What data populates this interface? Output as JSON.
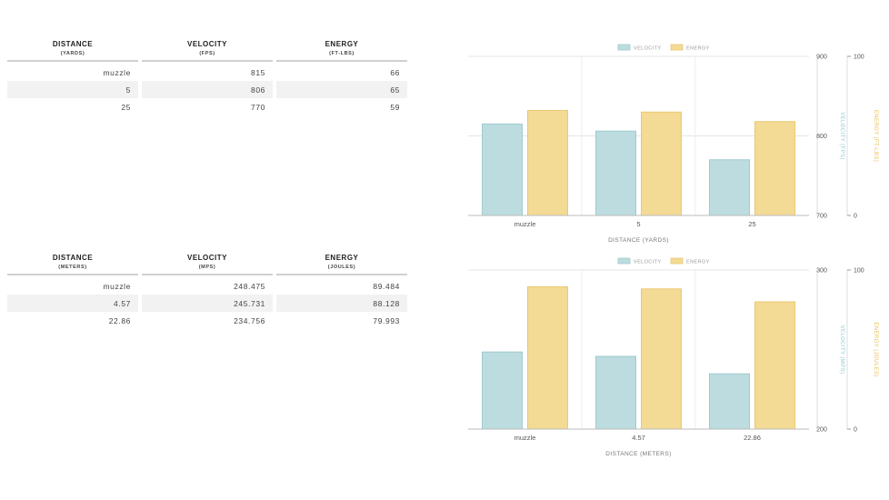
{
  "tables": [
    {
      "headers": [
        {
          "title": "DISTANCE",
          "sub": "(YARDS)"
        },
        {
          "title": "VELOCITY",
          "sub": "(FPS)"
        },
        {
          "title": "ENERGY",
          "sub": "(FT-LBS)"
        }
      ],
      "rows": [
        [
          "muzzle",
          "815",
          "66"
        ],
        [
          "5",
          "806",
          "65"
        ],
        [
          "25",
          "770",
          "59"
        ]
      ]
    },
    {
      "headers": [
        {
          "title": "DISTANCE",
          "sub": "(METERS)"
        },
        {
          "title": "VELOCITY",
          "sub": "(MPS)"
        },
        {
          "title": "ENERGY",
          "sub": "(JOULES)"
        }
      ],
      "rows": [
        [
          "muzzle",
          "248.475",
          "89.484"
        ],
        [
          "4.57",
          "245.731",
          "88.128"
        ],
        [
          "22.86",
          "234.756",
          "79.993"
        ]
      ]
    }
  ],
  "colors": {
    "velocity_fill": "#bcdcdf",
    "velocity_stroke": "#9fcbcf",
    "energy_fill": "#f3da95",
    "energy_stroke": "#e9c972",
    "velocity_axis_label": "#8ec8cf",
    "energy_axis_label": "#e8be55"
  },
  "chart_data": [
    {
      "type": "bar",
      "categories": [
        "muzzle",
        "5",
        "25"
      ],
      "series": [
        {
          "name": "VELOCITY",
          "values": [
            815,
            806,
            770
          ],
          "axis": "left",
          "ylim": [
            700,
            900
          ],
          "ticks": [
            700,
            800,
            900
          ],
          "ylabel": "VELOCITY (FPS)"
        },
        {
          "name": "ENERGY",
          "values": [
            66,
            65,
            59
          ],
          "axis": "right",
          "ylim": [
            0,
            100
          ],
          "ticks": [
            0,
            100
          ],
          "ylabel": "ENERGY (FT-LBS)"
        }
      ],
      "xlabel": "DISTANCE (YARDS)",
      "legend": "top-center",
      "grid": true
    },
    {
      "type": "bar",
      "categories": [
        "muzzle",
        "4.57",
        "22.86"
      ],
      "series": [
        {
          "name": "VELOCITY",
          "values": [
            248.475,
            245.731,
            234.756
          ],
          "axis": "left",
          "ylim": [
            200,
            300
          ],
          "ticks": [
            200,
            300
          ],
          "ylabel": "VELOCITY (MPS)"
        },
        {
          "name": "ENERGY",
          "values": [
            89.484,
            88.128,
            79.993
          ],
          "axis": "right",
          "ylim": [
            0,
            100
          ],
          "ticks": [
            0,
            100
          ],
          "ylabel": "ENERGY (JOULES)"
        }
      ],
      "xlabel": "DISTANCE (METERS)",
      "legend": "top-center",
      "grid": true
    }
  ]
}
